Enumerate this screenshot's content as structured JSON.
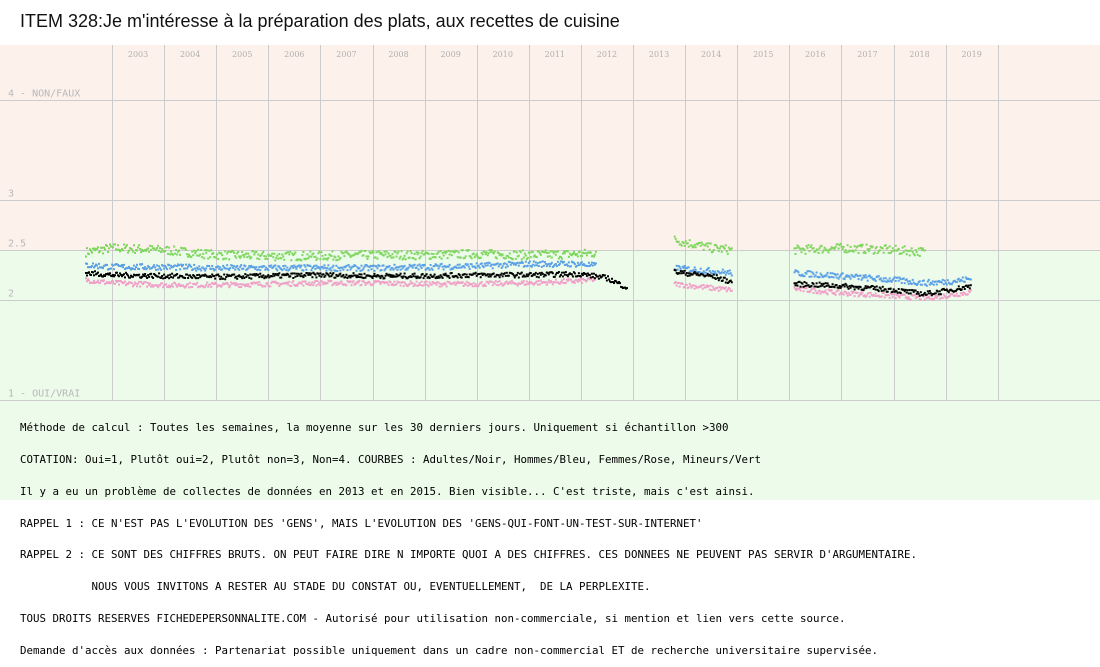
{
  "title": "ITEM 328:Je m'intéresse à la préparation des plats, aux recettes de cuisine",
  "colors": {
    "top_zone": "#fdf1eb",
    "bottom_zone": "#edfbea",
    "grid": "#cccccc",
    "adultes": "#000000",
    "hommes": "#5aa0e6",
    "femmes": "#f0a0c8",
    "mineurs": "#7ed65e"
  },
  "chart_data": {
    "type": "scatter",
    "title": "ITEM 328:Je m'intéresse à la préparation des plats, aux recettes de cuisine",
    "year_labels": [
      "2003",
      "2004",
      "2005",
      "2006",
      "2007",
      "2008",
      "2009",
      "2010",
      "2011",
      "2012",
      "2013",
      "2014",
      "2015",
      "2016",
      "2017",
      "2018",
      "2019"
    ],
    "y_tick_labels": [
      {
        "value": 4,
        "label": "4 - NON/FAUX"
      },
      {
        "value": 3,
        "label": "3"
      },
      {
        "value": 2.5,
        "label": "2.5"
      },
      {
        "value": 2,
        "label": "2"
      },
      {
        "value": 1,
        "label": "1 - OUI/VRAI"
      }
    ],
    "ylim": [
      1,
      4
    ],
    "xlim": [
      2002.5,
      2020
    ],
    "grid": true,
    "series": [
      {
        "key": "adultes",
        "color": "#000000",
        "segments": [
          {
            "x": [
              2002.5,
              2003,
              2004,
              2005,
              2006,
              2007,
              2008,
              2009,
              2010,
              2011,
              2012,
              2012.5,
              2012.9
            ],
            "y": [
              2.27,
              2.25,
              2.24,
              2.23,
              2.24,
              2.25,
              2.24,
              2.24,
              2.25,
              2.25,
              2.26,
              2.22,
              2.12
            ]
          },
          {
            "x": [
              2013.8,
              2014.5,
              2014.9
            ],
            "y": [
              2.28,
              2.24,
              2.18
            ]
          },
          {
            "x": [
              2016.1,
              2017,
              2018,
              2018.6,
              2019,
              2019.5
            ],
            "y": [
              2.16,
              2.14,
              2.1,
              2.06,
              2.09,
              2.14
            ]
          }
        ]
      },
      {
        "key": "hommes",
        "color": "#5aa0e6",
        "segments": [
          {
            "x": [
              2002.5,
              2003,
              2004,
              2005,
              2006,
              2007,
              2008,
              2009,
              2010,
              2011,
              2012,
              2012.3
            ],
            "y": [
              2.35,
              2.33,
              2.33,
              2.32,
              2.32,
              2.32,
              2.32,
              2.33,
              2.34,
              2.36,
              2.36,
              2.34
            ]
          },
          {
            "x": [
              2013.8,
              2014.5,
              2014.9
            ],
            "y": [
              2.32,
              2.29,
              2.27
            ]
          },
          {
            "x": [
              2016.1,
              2017,
              2018,
              2018.6,
              2019,
              2019.5
            ],
            "y": [
              2.27,
              2.24,
              2.2,
              2.17,
              2.18,
              2.21
            ]
          }
        ]
      },
      {
        "key": "femmes",
        "color": "#f0a0c8",
        "segments": [
          {
            "x": [
              2002.5,
              2003,
              2004,
              2005,
              2006,
              2007,
              2008,
              2009,
              2010,
              2011,
              2012,
              2012.3
            ],
            "y": [
              2.2,
              2.17,
              2.15,
              2.15,
              2.16,
              2.17,
              2.17,
              2.16,
              2.16,
              2.17,
              2.19,
              2.21
            ]
          },
          {
            "x": [
              2013.8,
              2014.5,
              2014.9
            ],
            "y": [
              2.16,
              2.12,
              2.1
            ]
          },
          {
            "x": [
              2016.1,
              2017,
              2018,
              2018.6,
              2019,
              2019.5
            ],
            "y": [
              2.11,
              2.07,
              2.04,
              2.02,
              2.04,
              2.08
            ]
          }
        ]
      },
      {
        "key": "mineurs",
        "color": "#7ed65e",
        "segments": [
          {
            "x": [
              2002.5,
              2003,
              2004,
              2005,
              2006,
              2007,
              2008,
              2009,
              2010,
              2011,
              2012,
              2012.3
            ],
            "y": [
              2.48,
              2.52,
              2.5,
              2.45,
              2.44,
              2.44,
              2.45,
              2.45,
              2.46,
              2.45,
              2.46,
              2.47
            ]
          },
          {
            "x": [
              2013.8,
              2014.5,
              2014.9
            ],
            "y": [
              2.6,
              2.52,
              2.5
            ]
          },
          {
            "x": [
              2016.1,
              2017,
              2018,
              2018.6
            ],
            "y": [
              2.5,
              2.52,
              2.5,
              2.48
            ]
          }
        ]
      }
    ]
  },
  "notes": [
    "Méthode de calcul : Toutes les semaines, la moyenne sur les 30 derniers jours. Uniquement si échantillon >300",
    "COTATION: Oui=1, Plutôt oui=2, Plutôt non=3, Non=4. COURBES : Adultes/Noir, Hommes/Bleu, Femmes/Rose, Mineurs/Vert",
    "Il y a eu un problème de collectes de données en 2013 et en 2015. Bien visible... C'est triste, mais c'est ainsi.",
    "RAPPEL 1 : CE N'EST PAS L'EVOLUTION DES 'GENS', MAIS L'EVOLUTION DES 'GENS-QUI-FONT-UN-TEST-SUR-INTERNET'",
    "RAPPEL 2 : CE SONT DES CHIFFRES BRUTS. ON PEUT FAIRE DIRE N IMPORTE QUOI A DES CHIFFRES. CES DONNEES NE PEUVENT PAS SERVIR D'ARGUMENTAIRE.",
    "           NOUS VOUS INVITONS A RESTER AU STADE DU CONSTAT OU, EVENTUELLEMENT,  DE LA PERPLEXITE.",
    "TOUS DROITS RESERVES FICHEDEPERSONNALITE.COM - Autorisé pour utilisation non-commerciale, si mention et lien vers cette source.",
    "Demande d'accès aux données : Partenariat possible uniquement dans un cadre non-commercial ET de recherche universitaire supervisée."
  ]
}
